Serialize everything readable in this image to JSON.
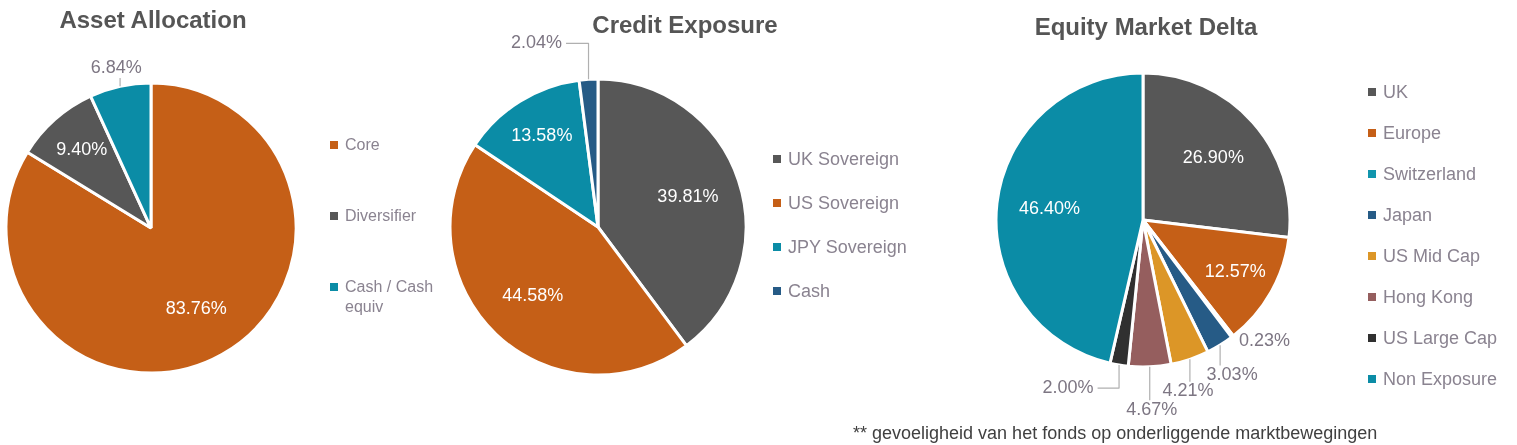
{
  "chart_data": [
    {
      "type": "pie",
      "title": "Asset Allocation",
      "categories": [
        "Core",
        "Diversifier",
        "Cash / Cash equiv"
      ],
      "values": [
        83.76,
        9.4,
        6.84
      ],
      "colors": [
        "#c55f17",
        "#575757",
        "#0b8ca6"
      ],
      "value_labels": [
        "83.76%",
        "9.40%",
        "6.84%"
      ],
      "legend": "right"
    },
    {
      "type": "pie",
      "title": "Credit Exposure",
      "categories": [
        "UK Sovereign",
        "US Sovereign",
        "JPY Sovereign",
        "Cash"
      ],
      "values": [
        39.81,
        44.58,
        13.58,
        2.04
      ],
      "colors": [
        "#575757",
        "#c55f17",
        "#0b8ca6",
        "#265b86"
      ],
      "value_labels": [
        "39.81%",
        "44.58%",
        "13.58%",
        "2.04%"
      ],
      "legend": "right"
    },
    {
      "type": "pie",
      "title": "Equity Market Delta",
      "categories": [
        "UK",
        "Europe",
        "Switzerland",
        "Japan",
        "US Mid Cap",
        "Hong Kong",
        "US Large Cap",
        "Non Exposure"
      ],
      "values": [
        26.9,
        12.57,
        0.23,
        3.03,
        4.21,
        4.67,
        2.0,
        46.4
      ],
      "colors": [
        "#575757",
        "#c55f17",
        "#1195ad",
        "#265b86",
        "#dc9627",
        "#955e5e",
        "#303030",
        "#0b8ca6"
      ],
      "value_labels": [
        "26.90%",
        "12.57%",
        "0.23%",
        "3.03%",
        "4.21%",
        "4.67%",
        "2.00%",
        "46.40%"
      ],
      "legend": "right",
      "annotations": [
        "** gevoeligheid van het fonds op onderliggende marktbewegingen"
      ]
    }
  ]
}
